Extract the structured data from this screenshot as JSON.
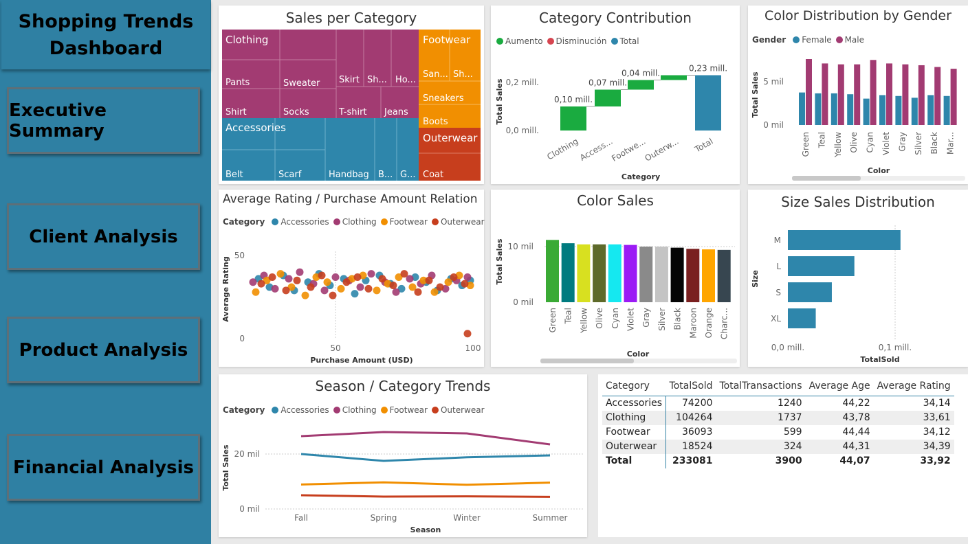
{
  "sidebar": {
    "title_line1": "Shopping Trends",
    "title_line2": "Dashboard",
    "nav": [
      "Executive Summary",
      "Client Analysis",
      "Product Analysis",
      "Financial Analysis"
    ]
  },
  "colors": {
    "sidebar": "#2f80a3",
    "accessories": "#2e86ab",
    "clothing": "#a23b72",
    "footwear": "#f18f01",
    "outerwear": "#c73e1d",
    "aumento": "#1aab40",
    "disminucion": "#d64550"
  },
  "treemap": {
    "title": "Sales per Category",
    "groups": [
      "Clothing",
      "Footwear",
      "Accessories",
      "Outerwear"
    ],
    "labels": [
      "Pants",
      "Sweater",
      "Skirt",
      "Sh...",
      "Ho...",
      "Shirt",
      "Socks",
      "T-shirt",
      "Jeans",
      "San...",
      "Sh...",
      "Sneakers",
      "Boots",
      "Belt",
      "Scarf",
      "Handbag",
      "B...",
      "G...",
      "Coat"
    ]
  },
  "waterfall": {
    "title": "Category Contribution",
    "legend": [
      "Aumento",
      "Disminución",
      "Total"
    ],
    "ylabel": "Total Sales",
    "xlabel": "Category",
    "yticks": [
      "0,0 mill.",
      "0,2 mill."
    ],
    "categories": [
      "Clothing",
      "Access...",
      "Footwe...",
      "Outerw...",
      "Total"
    ],
    "data_labels": [
      "0,10 mill.",
      "0,07 mill.",
      "0,04 mill.",
      "",
      "0,23 mill."
    ]
  },
  "gender_chart": {
    "title": "Color Distribution by Gender",
    "legend_title": "Gender",
    "legend": [
      "Female",
      "Male"
    ],
    "ylabel": "Total Sales",
    "xlabel": "Color",
    "yticks": [
      "0 mil",
      "5 mil"
    ]
  },
  "scatter": {
    "title": "Average Rating / Purchase Amount Relation",
    "legend_title": "Category",
    "legend": [
      "Accessories",
      "Clothing",
      "Footwear",
      "Outerwear"
    ],
    "ylabel": "Average Rating",
    "xlabel": "Purchase Amount (USD)",
    "xticks": [
      "50",
      "100"
    ],
    "yticks": [
      "0",
      "50"
    ]
  },
  "color_sales": {
    "title": "Color Sales",
    "ylabel": "Total Sales",
    "xlabel": "Color",
    "yticks": [
      "0 mil",
      "10 mil"
    ]
  },
  "size_chart": {
    "title": "Size Sales Distribution",
    "ylabel": "Size",
    "xlabel": "TotalSold",
    "xticks": [
      "0,0 mill.",
      "0,1 mill."
    ]
  },
  "season_chart": {
    "title": "Season / Category Trends",
    "legend_title": "Category",
    "legend": [
      "Accessories",
      "Clothing",
      "Footwear",
      "Outerwear"
    ],
    "ylabel": "Total Sales",
    "xlabel": "Season",
    "yticks": [
      "0 mil",
      "20 mil"
    ]
  },
  "table": {
    "headers": [
      "Category",
      "TotalSold",
      "TotalTransactions",
      "Average Age",
      "Average Rating"
    ],
    "rows": [
      [
        "Accessories",
        "74200",
        "1240",
        "44,22",
        "34,14"
      ],
      [
        "Clothing",
        "104264",
        "1737",
        "43,78",
        "33,61"
      ],
      [
        "Footwear",
        "36093",
        "599",
        "44,44",
        "34,12"
      ],
      [
        "Outerwear",
        "18524",
        "324",
        "44,31",
        "34,39"
      ]
    ],
    "total": [
      "Total",
      "233081",
      "3900",
      "44,07",
      "33,92"
    ]
  },
  "chart_data": [
    {
      "type": "treemap",
      "title": "Sales per Category",
      "categories": [
        "Clothing",
        "Accessories",
        "Footwear",
        "Outerwear"
      ],
      "values": [
        104264,
        74200,
        36093,
        18524
      ]
    },
    {
      "type": "bar",
      "subtype": "waterfall",
      "title": "Category Contribution",
      "categories": [
        "Clothing",
        "Access...",
        "Footwe...",
        "Outerw...",
        "Total"
      ],
      "values": [
        0.1,
        0.07,
        0.04,
        0.02,
        0.23
      ],
      "unit": "mill.",
      "ylim": [
        0,
        0.25
      ]
    },
    {
      "type": "bar",
      "title": "Color Distribution by Gender",
      "categories": [
        "Green",
        "Teal",
        "Yellow",
        "Olive",
        "Cyan",
        "Violet",
        "Gray",
        "Silver",
        "Black",
        "Mar..."
      ],
      "series": [
        {
          "name": "Female",
          "values": [
            3.7,
            3.6,
            3.6,
            3.5,
            3.0,
            3.4,
            3.3,
            3.1,
            3.4,
            3.3
          ]
        },
        {
          "name": "Male",
          "values": [
            7.5,
            7.0,
            6.9,
            6.9,
            7.4,
            7.0,
            6.9,
            6.8,
            6.6,
            6.4
          ]
        }
      ],
      "unit": "mil",
      "ylim": [
        0,
        8
      ]
    },
    {
      "type": "scatter",
      "title": "Average Rating / Purchase Amount Relation",
      "series": [
        {
          "name": "Accessories",
          "x": [
            22,
            26,
            31,
            35,
            40,
            44,
            48,
            53,
            57,
            61,
            66,
            70,
            74,
            79,
            83,
            87,
            92,
            96,
            99
          ],
          "y": [
            36,
            31,
            38,
            29,
            34,
            39,
            32,
            36,
            27,
            35,
            38,
            33,
            30,
            37,
            34,
            29,
            36,
            32,
            35
          ]
        },
        {
          "name": "Clothing",
          "x": [
            20,
            24,
            28,
            33,
            37,
            42,
            46,
            50,
            55,
            59,
            63,
            68,
            72,
            77,
            81,
            85,
            90,
            94,
            98
          ],
          "y": [
            34,
            38,
            30,
            36,
            40,
            33,
            29,
            37,
            35,
            31,
            39,
            34,
            28,
            36,
            33,
            38,
            30,
            35,
            37
          ]
        },
        {
          "name": "Footwear",
          "x": [
            21,
            25,
            30,
            34,
            39,
            43,
            47,
            52,
            56,
            60,
            65,
            69,
            73,
            78,
            82,
            86,
            91,
            95,
            99
          ],
          "y": [
            28,
            35,
            39,
            31,
            26,
            37,
            34,
            30,
            36,
            38,
            29,
            33,
            37,
            31,
            35,
            28,
            34,
            38,
            32
          ]
        },
        {
          "name": "Outerwear",
          "x": [
            23,
            27,
            32,
            36,
            41,
            45,
            49,
            54,
            58,
            62,
            67,
            71,
            75,
            80,
            84,
            88,
            93,
            97,
            98
          ],
          "y": [
            33,
            37,
            29,
            35,
            31,
            38,
            26,
            34,
            37,
            30,
            36,
            32,
            39,
            28,
            35,
            31,
            37,
            33,
            3
          ]
        }
      ],
      "xlim": [
        20,
        100
      ],
      "ylim": [
        0,
        50
      ]
    },
    {
      "type": "bar",
      "title": "Color Sales",
      "categories": [
        "Green",
        "Teal",
        "Yellow",
        "Olive",
        "Cyan",
        "Violet",
        "Gray",
        "Silver",
        "Black",
        "Maroon",
        "Orange",
        "Charc..."
      ],
      "values": [
        11.2,
        10.6,
        10.4,
        10.4,
        10.4,
        10.3,
        10.0,
        10.0,
        9.8,
        9.6,
        9.5,
        9.4
      ],
      "colors": [
        "#3aaa35",
        "#007b7f",
        "#d8e020",
        "#5e6a2a",
        "#15e8f0",
        "#9b1bf5",
        "#8a8a8a",
        "#c4c4c4",
        "#050505",
        "#7a1f1f",
        "#ffa500",
        "#374650"
      ],
      "unit": "mil",
      "ylim": [
        0,
        12
      ]
    },
    {
      "type": "bar",
      "orientation": "horizontal",
      "title": "Size Sales Distribution",
      "categories": [
        "M",
        "L",
        "S",
        "XL"
      ],
      "values": [
        0.105,
        0.062,
        0.041,
        0.026
      ],
      "unit": "mill.",
      "xlim": [
        0,
        0.12
      ]
    },
    {
      "type": "line",
      "title": "Season / Category Trends",
      "categories": [
        "Fall",
        "Spring",
        "Winter",
        "Summer"
      ],
      "series": [
        {
          "name": "Accessories",
          "values": [
            20.0,
            17.5,
            18.8,
            19.5
          ]
        },
        {
          "name": "Clothing",
          "values": [
            26.5,
            28.0,
            27.5,
            23.5
          ]
        },
        {
          "name": "Footwear",
          "values": [
            8.9,
            9.7,
            8.8,
            9.6
          ]
        },
        {
          "name": "Outerwear",
          "values": [
            5.0,
            4.5,
            4.6,
            4.4
          ]
        }
      ],
      "unit": "mil",
      "ylim": [
        0,
        33
      ]
    }
  ]
}
